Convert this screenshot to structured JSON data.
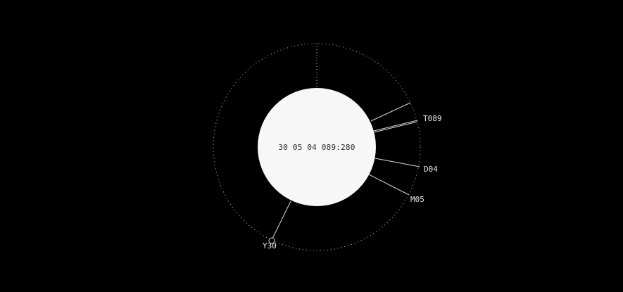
{
  "center_readout": "30 05 04 089:280",
  "colors": {
    "background": "#000000",
    "disc": "#f7f7f7",
    "line": "#d8d8d8",
    "ring": "#bdbdbd",
    "text": "#e8e8e8"
  },
  "markers": [
    {
      "key": "T089",
      "label": "T089"
    },
    {
      "key": "D04",
      "label": "D04"
    },
    {
      "key": "M05",
      "label": "M05"
    },
    {
      "key": "Y30",
      "label": "Y30"
    }
  ],
  "icons": {
    "year_handle": "circle-handle-icon"
  }
}
